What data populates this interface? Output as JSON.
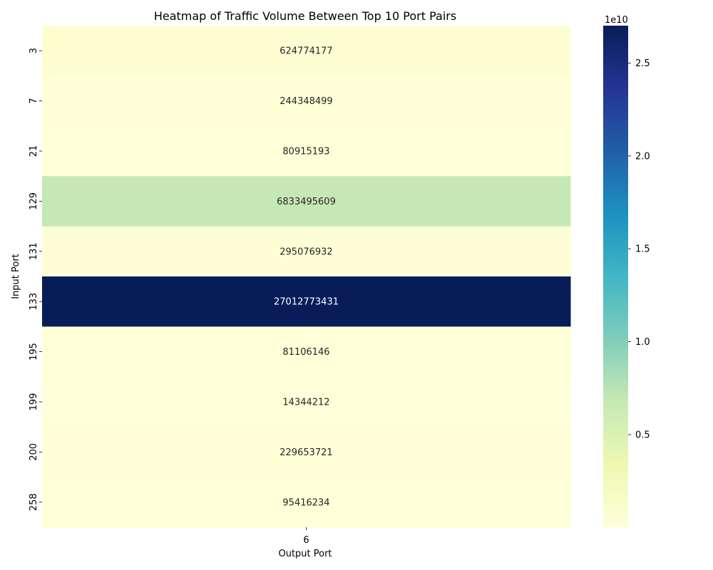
{
  "chart_data": {
    "type": "heatmap",
    "title": "Heatmap of Traffic Volume Between Top 10 Port Pairs",
    "xlabel": "Output Port",
    "ylabel": "Input Port",
    "x_categories": [
      "6"
    ],
    "y_categories": [
      "3",
      "7",
      "21",
      "129",
      "131",
      "133",
      "195",
      "199",
      "200",
      "258"
    ],
    "values": [
      [
        624774177
      ],
      [
        244348499
      ],
      [
        80915193
      ],
      [
        6833495609
      ],
      [
        295076932
      ],
      [
        27012773431
      ],
      [
        81106146
      ],
      [
        14344212
      ],
      [
        229653721
      ],
      [
        95416234
      ]
    ],
    "colormap": "YlGnBu",
    "colorbar": {
      "multiplier_label": "1e10",
      "ticks": [
        0.5,
        1.0,
        1.5,
        2.0,
        2.5
      ],
      "tick_labels": [
        "0.5",
        "1.0",
        "1.5",
        "2.0",
        "2.5"
      ],
      "scale": 10000000000
    },
    "vmin": 14344212,
    "vmax": 27012773431,
    "colors": {
      "low": "#ffffd9",
      "high": "#081d58",
      "dark_text": "#262626",
      "light_text": "#ffffff"
    }
  }
}
